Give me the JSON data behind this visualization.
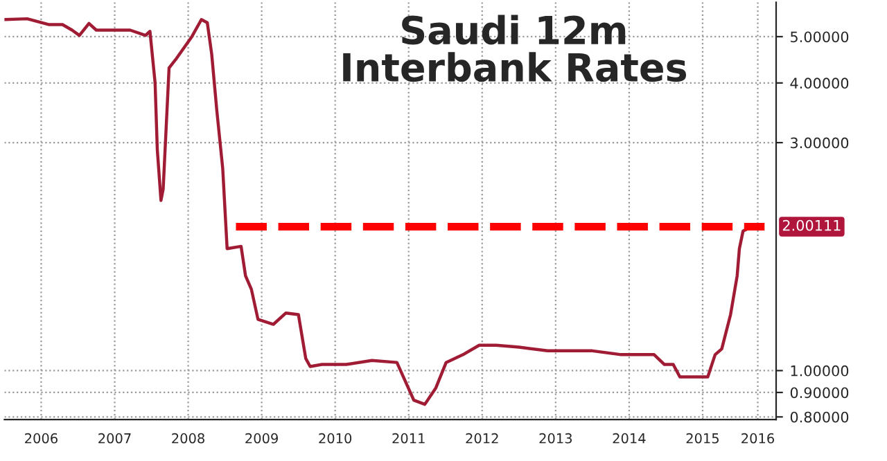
{
  "chart_data": {
    "type": "line",
    "title": "Saudi 12m\nInterbank Rates",
    "x": [
      2006.0,
      2006.31,
      2006.6,
      2006.79,
      2006.92,
      2007.02,
      2007.15,
      2007.25,
      2007.71,
      2007.92,
      2007.98,
      2008.05,
      2008.08,
      2008.13,
      2008.16,
      2008.24,
      2008.34,
      2008.55,
      2008.68,
      2008.76,
      2008.82,
      2008.89,
      2008.97,
      2009.03,
      2009.22,
      2009.28,
      2009.36,
      2009.45,
      2009.66,
      2009.83,
      2010.0,
      2010.1,
      2010.16,
      2010.32,
      2010.65,
      2011.0,
      2011.34,
      2011.57,
      2011.72,
      2011.87,
      2012.01,
      2012.24,
      2012.46,
      2012.69,
      2013.0,
      2013.39,
      2014.0,
      2014.39,
      2014.84,
      2014.98,
      2015.1,
      2015.19,
      2015.57,
      2015.67,
      2015.76,
      2015.88,
      2015.97,
      2016.0,
      2016.05,
      2016.17
    ],
    "series": [
      {
        "color": "#a01c34",
        "values": [
          5.43,
          5.45,
          5.3,
          5.3,
          5.16,
          5.03,
          5.33,
          5.16,
          5.16,
          5.03,
          5.13,
          4.0,
          2.9,
          2.27,
          2.4,
          4.3,
          4.5,
          5.0,
          5.43,
          5.35,
          4.6,
          3.5,
          2.65,
          1.8,
          1.82,
          1.58,
          1.48,
          1.28,
          1.25,
          1.32,
          1.31,
          1.06,
          1.02,
          1.03,
          1.03,
          1.05,
          1.04,
          0.867,
          0.85,
          0.92,
          1.04,
          1.08,
          1.13,
          1.13,
          1.12,
          1.1,
          1.1,
          1.08,
          1.08,
          1.03,
          1.03,
          0.97,
          0.97,
          1.08,
          1.11,
          1.31,
          1.58,
          1.8,
          1.96,
          2.0
        ]
      }
    ],
    "log": "y",
    "xlim": [
      2006.0,
      2016.5
    ],
    "ylim": [
      0.79,
      5.9
    ],
    "xticks": [
      {
        "value": 2006.5,
        "label": "2006"
      },
      {
        "value": 2007.5,
        "label": "2007"
      },
      {
        "value": 2008.5,
        "label": "2008"
      },
      {
        "value": 2009.5,
        "label": "2009"
      },
      {
        "value": 2010.5,
        "label": "2010"
      },
      {
        "value": 2011.5,
        "label": "2011"
      },
      {
        "value": 2012.5,
        "label": "2012"
      },
      {
        "value": 2013.5,
        "label": "2013"
      },
      {
        "value": 2014.5,
        "label": "2014"
      },
      {
        "value": 2015.5,
        "label": "2015"
      },
      {
        "value": 2016.25,
        "label": "2016"
      }
    ],
    "yticks": [
      {
        "value": 0.8,
        "label": "0.80000"
      },
      {
        "value": 0.9,
        "label": "0.90000"
      },
      {
        "value": 1.0,
        "label": "1.00000"
      },
      {
        "value": 3.0,
        "label": "3.00000"
      },
      {
        "value": 4.0,
        "label": "4.00000"
      },
      {
        "value": 5.0,
        "label": "5.00000"
      }
    ],
    "ref_lines": [
      {
        "axis": "y",
        "value": 2.00111,
        "label": "2.00111",
        "color": "#ff0000",
        "line_style": "dashed"
      }
    ],
    "grid": true
  }
}
